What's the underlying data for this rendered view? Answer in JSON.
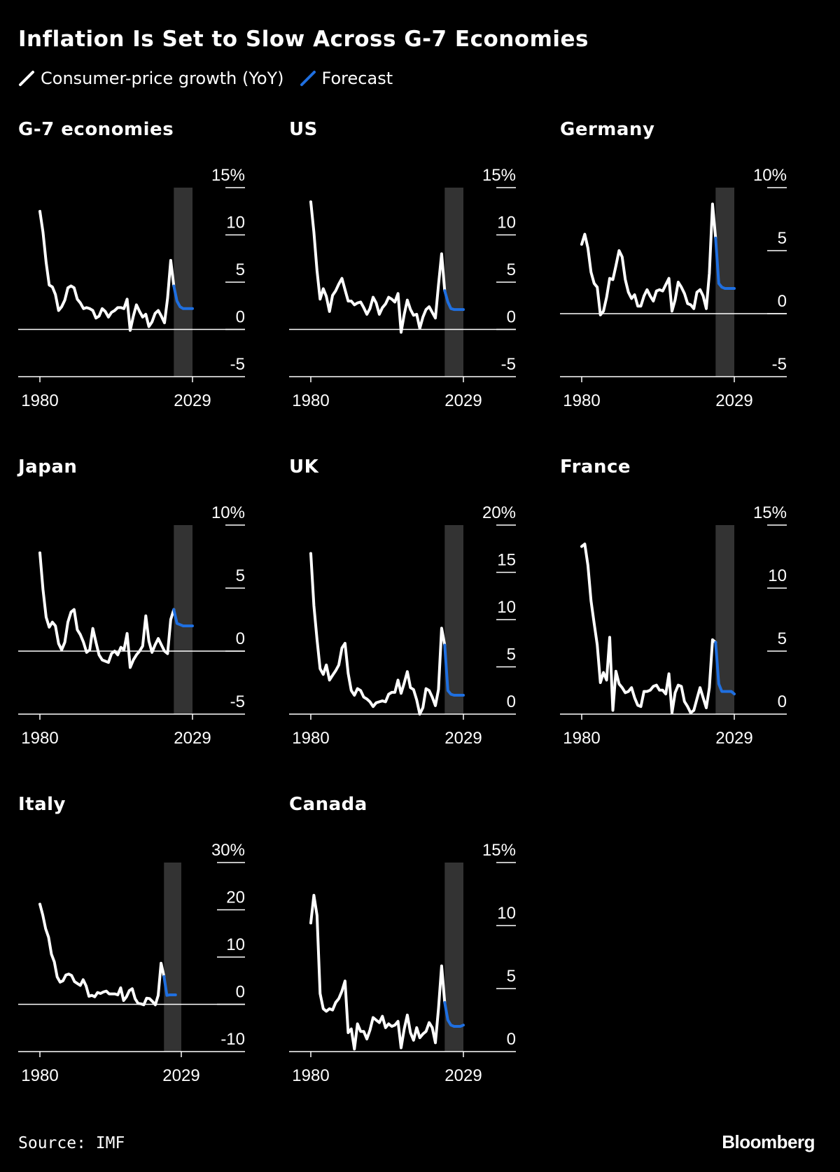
{
  "title": "Inflation Is Set to Slow Across G-7 Economies",
  "legend": {
    "items": [
      {
        "label": "Consumer-price growth (YoY)",
        "color": "#ffffff"
      },
      {
        "label": "Forecast",
        "color": "#1f6fe0"
      }
    ]
  },
  "source": "Source: IMF",
  "brand": "Bloomberg",
  "colors": {
    "background": "#000000",
    "history": "#ffffff",
    "forecast": "#1f6fe0",
    "forecast_band": "#333333"
  },
  "chart_data": [
    {
      "type": "line",
      "title": "G-7 economies",
      "x_ticks": [
        "1980",
        "2029"
      ],
      "forecast_range": [
        2023,
        2029
      ],
      "ylim": [
        -5,
        15
      ],
      "y_ticks": [
        15,
        10,
        5,
        0,
        -5
      ],
      "y_tick_labels": [
        "15%",
        "10",
        "5",
        "0",
        "-5"
      ],
      "series": [
        {
          "role": "history",
          "x": [
            1980,
            1981,
            1982,
            1983,
            1984,
            1985,
            1986,
            1987,
            1988,
            1989,
            1990,
            1991,
            1992,
            1993,
            1994,
            1995,
            1996,
            1997,
            1998,
            1999,
            2000,
            2001,
            2002,
            2003,
            2004,
            2005,
            2006,
            2007,
            2008,
            2009,
            2010,
            2011,
            2012,
            2013,
            2014,
            2015,
            2016,
            2017,
            2018,
            2019,
            2020,
            2021,
            2022,
            2023
          ],
          "y": [
            12.5,
            10.3,
            7.1,
            4.7,
            4.5,
            3.7,
            2.0,
            2.4,
            3.1,
            4.4,
            4.6,
            4.4,
            3.2,
            2.8,
            2.2,
            2.3,
            2.2,
            2.0,
            1.2,
            1.4,
            2.2,
            1.9,
            1.3,
            1.8,
            2.0,
            2.3,
            2.3,
            2.2,
            3.2,
            -0.1,
            1.4,
            2.6,
            1.9,
            1.3,
            1.6,
            0.3,
            0.8,
            1.7,
            2.0,
            1.4,
            0.7,
            3.3,
            7.3,
            4.6
          ]
        },
        {
          "role": "forecast",
          "x": [
            2023,
            2024,
            2025,
            2026,
            2027,
            2028,
            2029
          ],
          "y": [
            4.6,
            3.0,
            2.4,
            2.2,
            2.2,
            2.2,
            2.2
          ]
        }
      ]
    },
    {
      "type": "line",
      "title": "US",
      "x_ticks": [
        "1980",
        "2029"
      ],
      "forecast_range": [
        2023,
        2029
      ],
      "ylim": [
        -5,
        15
      ],
      "y_ticks": [
        15,
        10,
        5,
        0,
        -5
      ],
      "y_tick_labels": [
        "15%",
        "10",
        "5",
        "0",
        "-5"
      ],
      "series": [
        {
          "role": "history",
          "x": [
            1980,
            1981,
            1982,
            1983,
            1984,
            1985,
            1986,
            1987,
            1988,
            1989,
            1990,
            1991,
            1992,
            1993,
            1994,
            1995,
            1996,
            1997,
            1998,
            1999,
            2000,
            2001,
            2002,
            2003,
            2004,
            2005,
            2006,
            2007,
            2008,
            2009,
            2010,
            2011,
            2012,
            2013,
            2014,
            2015,
            2016,
            2017,
            2018,
            2019,
            2020,
            2021,
            2022,
            2023
          ],
          "y": [
            13.5,
            10.3,
            6.2,
            3.2,
            4.3,
            3.5,
            1.9,
            3.6,
            4.1,
            4.8,
            5.4,
            4.2,
            3.0,
            3.0,
            2.6,
            2.8,
            2.9,
            2.3,
            1.6,
            2.2,
            3.4,
            2.8,
            1.6,
            2.3,
            2.7,
            3.4,
            3.2,
            2.9,
            3.8,
            -0.3,
            1.6,
            3.1,
            2.1,
            1.5,
            1.6,
            0.1,
            1.3,
            2.1,
            2.4,
            1.8,
            1.2,
            4.7,
            8.0,
            4.1
          ]
        },
        {
          "role": "forecast",
          "x": [
            2023,
            2024,
            2025,
            2026,
            2027,
            2028,
            2029
          ],
          "y": [
            4.1,
            2.9,
            2.2,
            2.1,
            2.1,
            2.1,
            2.1
          ]
        }
      ]
    },
    {
      "type": "line",
      "title": "Germany",
      "x_ticks": [
        "1980",
        "2029"
      ],
      "forecast_range": [
        2023,
        2029
      ],
      "ylim": [
        -5,
        10
      ],
      "y_ticks": [
        10,
        5,
        0,
        -5
      ],
      "y_tick_labels": [
        "10%",
        "5",
        "0",
        "-5"
      ],
      "series": [
        {
          "role": "history",
          "x": [
            1980,
            1981,
            1982,
            1983,
            1984,
            1985,
            1986,
            1987,
            1988,
            1989,
            1990,
            1991,
            1992,
            1993,
            1994,
            1995,
            1996,
            1997,
            1998,
            1999,
            2000,
            2001,
            2002,
            2003,
            2004,
            2005,
            2006,
            2007,
            2008,
            2009,
            2010,
            2011,
            2012,
            2013,
            2014,
            2015,
            2016,
            2017,
            2018,
            2019,
            2020,
            2021,
            2022,
            2023
          ],
          "y": [
            5.5,
            6.3,
            5.2,
            3.3,
            2.4,
            2.1,
            -0.1,
            0.2,
            1.3,
            2.8,
            2.7,
            3.8,
            5.0,
            4.5,
            2.7,
            1.7,
            1.2,
            1.5,
            0.6,
            0.6,
            1.4,
            1.9,
            1.4,
            1.0,
            1.8,
            1.9,
            1.8,
            2.3,
            2.8,
            0.2,
            1.1,
            2.5,
            2.1,
            1.6,
            0.8,
            0.7,
            0.4,
            1.7,
            1.9,
            1.4,
            0.4,
            3.2,
            8.7,
            6.0
          ]
        },
        {
          "role": "forecast",
          "x": [
            2023,
            2024,
            2025,
            2026,
            2027,
            2028,
            2029
          ],
          "y": [
            6.0,
            2.4,
            2.1,
            2.0,
            2.0,
            2.0,
            2.0
          ]
        }
      ]
    },
    {
      "type": "line",
      "title": "Japan",
      "x_ticks": [
        "1980",
        "2029"
      ],
      "forecast_range": [
        2023,
        2029
      ],
      "ylim": [
        -5,
        10
      ],
      "y_ticks": [
        10,
        5,
        0,
        -5
      ],
      "y_tick_labels": [
        "10%",
        "5",
        "0",
        "-5"
      ],
      "series": [
        {
          "role": "history",
          "x": [
            1980,
            1981,
            1982,
            1983,
            1984,
            1985,
            1986,
            1987,
            1988,
            1989,
            1990,
            1991,
            1992,
            1993,
            1994,
            1995,
            1996,
            1997,
            1998,
            1999,
            2000,
            2001,
            2002,
            2003,
            2004,
            2005,
            2006,
            2007,
            2008,
            2009,
            2010,
            2011,
            2012,
            2013,
            2014,
            2015,
            2016,
            2017,
            2018,
            2019,
            2020,
            2021,
            2022,
            2023
          ],
          "y": [
            7.8,
            4.9,
            2.7,
            1.9,
            2.3,
            2.0,
            0.6,
            0.1,
            0.7,
            2.3,
            3.1,
            3.3,
            1.7,
            1.3,
            0.7,
            -0.1,
            0.1,
            1.8,
            0.7,
            -0.3,
            -0.7,
            -0.8,
            -0.9,
            -0.2,
            0.0,
            -0.3,
            0.3,
            0.1,
            1.4,
            -1.3,
            -0.7,
            -0.3,
            0.0,
            0.4,
            2.8,
            0.8,
            -0.1,
            0.5,
            1.0,
            0.5,
            0.0,
            -0.2,
            2.5,
            3.3
          ]
        },
        {
          "role": "forecast",
          "x": [
            2023,
            2024,
            2025,
            2026,
            2027,
            2028,
            2029
          ],
          "y": [
            3.3,
            2.2,
            2.1,
            2.0,
            2.0,
            2.0,
            2.0
          ]
        }
      ]
    },
    {
      "type": "line",
      "title": "UK",
      "x_ticks": [
        "1980",
        "2029"
      ],
      "forecast_range": [
        2023,
        2029
      ],
      "ylim": [
        0,
        20
      ],
      "y_ticks": [
        20,
        15,
        10,
        5,
        0
      ],
      "y_tick_labels": [
        "20%",
        "15",
        "10",
        "5",
        "0"
      ],
      "series": [
        {
          "role": "history",
          "x": [
            1980,
            1981,
            1982,
            1983,
            1984,
            1985,
            1986,
            1987,
            1988,
            1989,
            1990,
            1991,
            1992,
            1993,
            1994,
            1995,
            1996,
            1997,
            1998,
            1999,
            2000,
            2001,
            2002,
            2003,
            2004,
            2005,
            2006,
            2007,
            2008,
            2009,
            2010,
            2011,
            2012,
            2013,
            2014,
            2015,
            2016,
            2017,
            2018,
            2019,
            2020,
            2021,
            2022,
            2023
          ],
          "y": [
            17.0,
            11.5,
            7.9,
            4.8,
            4.2,
            5.2,
            3.6,
            4.1,
            4.6,
            5.2,
            7.0,
            7.5,
            4.3,
            2.5,
            2.0,
            2.7,
            2.5,
            1.8,
            1.6,
            1.3,
            0.8,
            1.2,
            1.3,
            1.4,
            1.3,
            2.1,
            2.3,
            2.3,
            3.6,
            2.2,
            3.3,
            4.5,
            2.8,
            2.6,
            1.5,
            0.0,
            0.7,
            2.7,
            2.5,
            1.8,
            0.9,
            2.6,
            9.1,
            7.3
          ]
        },
        {
          "role": "forecast",
          "x": [
            2023,
            2024,
            2025,
            2026,
            2027,
            2028,
            2029
          ],
          "y": [
            7.3,
            2.5,
            2.1,
            2.0,
            2.0,
            2.0,
            2.0
          ]
        }
      ]
    },
    {
      "type": "line",
      "title": "France",
      "x_ticks": [
        "1980",
        "2029"
      ],
      "forecast_range": [
        2023,
        2029
      ],
      "ylim": [
        0,
        15
      ],
      "y_ticks": [
        15,
        10,
        5,
        0
      ],
      "y_tick_labels": [
        "15%",
        "10",
        "5",
        "0"
      ],
      "series": [
        {
          "role": "history",
          "x": [
            1980,
            1981,
            1982,
            1983,
            1984,
            1985,
            1986,
            1987,
            1988,
            1989,
            1990,
            1991,
            1992,
            1993,
            1994,
            1995,
            1996,
            1997,
            1998,
            1999,
            2000,
            2001,
            2002,
            2003,
            2004,
            2005,
            2006,
            2007,
            2008,
            2009,
            2010,
            2011,
            2012,
            2013,
            2014,
            2015,
            2016,
            2017,
            2018,
            2019,
            2020,
            2021,
            2022,
            2023
          ],
          "y": [
            13.3,
            13.5,
            11.8,
            9.0,
            7.2,
            5.5,
            2.5,
            3.3,
            2.7,
            6.1,
            0.3,
            3.4,
            2.4,
            2.1,
            1.7,
            1.8,
            2.1,
            1.3,
            0.7,
            0.6,
            1.8,
            1.8,
            1.9,
            2.2,
            2.3,
            1.9,
            1.9,
            1.6,
            3.2,
            0.1,
            1.7,
            2.3,
            2.2,
            1.0,
            0.6,
            0.1,
            0.3,
            1.2,
            2.1,
            1.3,
            0.5,
            2.1,
            5.9,
            5.7
          ]
        },
        {
          "role": "forecast",
          "x": [
            2023,
            2024,
            2025,
            2026,
            2027,
            2028,
            2029
          ],
          "y": [
            5.7,
            2.4,
            1.8,
            1.8,
            1.8,
            1.8,
            1.6
          ]
        }
      ]
    },
    {
      "type": "line",
      "title": "Italy",
      "x_ticks": [
        "1980",
        "2029"
      ],
      "forecast_range": [
        2023,
        2029
      ],
      "ylim": [
        -10,
        30
      ],
      "y_ticks": [
        30,
        20,
        10,
        0,
        -10
      ],
      "y_tick_labels": [
        "30%",
        "20",
        "10",
        "0",
        "-10"
      ],
      "series": [
        {
          "role": "history",
          "x": [
            1980,
            1981,
            1982,
            1983,
            1984,
            1985,
            1986,
            1987,
            1988,
            1989,
            1990,
            1991,
            1992,
            1993,
            1994,
            1995,
            1996,
            1997,
            1998,
            1999,
            2000,
            2001,
            2002,
            2003,
            2004,
            2005,
            2006,
            2007,
            2008,
            2009,
            2010,
            2011,
            2012,
            2013,
            2014,
            2015,
            2016,
            2017,
            2018,
            2019,
            2020,
            2021,
            2022,
            2023
          ],
          "y": [
            21.2,
            18.9,
            16.0,
            14.2,
            10.6,
            9.0,
            5.8,
            4.7,
            5.0,
            6.2,
            6.4,
            6.1,
            4.8,
            4.4,
            4.0,
            5.2,
            3.9,
            1.7,
            1.9,
            1.6,
            2.5,
            2.3,
            2.6,
            2.8,
            2.2,
            2.2,
            2.2,
            2.0,
            3.5,
            0.8,
            1.6,
            2.9,
            3.3,
            1.2,
            0.2,
            0.1,
            -0.1,
            1.3,
            1.2,
            0.6,
            -0.1,
            1.9,
            8.7,
            5.9
          ]
        },
        {
          "role": "forecast",
          "x": [
            2023,
            2024,
            2025,
            2026,
            2027
          ],
          "y": [
            5.9,
            1.9,
            2.0,
            2.0,
            2.0
          ]
        }
      ]
    },
    {
      "type": "line",
      "title": "Canada",
      "x_ticks": [
        "1980",
        "2029"
      ],
      "forecast_range": [
        2023,
        2029
      ],
      "ylim": [
        0,
        15
      ],
      "y_ticks": [
        15,
        10,
        5,
        0
      ],
      "y_tick_labels": [
        "15%",
        "10",
        "5",
        "0"
      ],
      "series": [
        {
          "role": "history",
          "x": [
            1980,
            1981,
            1982,
            1983,
            1984,
            1985,
            1986,
            1987,
            1988,
            1989,
            1990,
            1991,
            1992,
            1993,
            1994,
            1995,
            1996,
            1997,
            1998,
            1999,
            2000,
            2001,
            2002,
            2003,
            2004,
            2005,
            2006,
            2007,
            2008,
            2009,
            2010,
            2011,
            2012,
            2013,
            2014,
            2015,
            2016,
            2017,
            2018,
            2019,
            2020,
            2021,
            2022,
            2023
          ],
          "y": [
            10.2,
            12.4,
            10.8,
            4.6,
            3.4,
            3.2,
            3.4,
            3.3,
            3.9,
            4.2,
            4.8,
            5.6,
            1.5,
            1.8,
            0.2,
            2.2,
            1.6,
            1.6,
            1.0,
            1.7,
            2.7,
            2.5,
            2.3,
            2.8,
            1.9,
            2.2,
            2.0,
            2.1,
            2.4,
            0.3,
            1.8,
            2.9,
            1.5,
            0.9,
            1.9,
            1.1,
            1.4,
            1.6,
            2.3,
            1.9,
            0.7,
            3.4,
            6.8,
            3.9
          ]
        },
        {
          "role": "forecast",
          "x": [
            2023,
            2024,
            2025,
            2026,
            2027,
            2028,
            2029
          ],
          "y": [
            3.9,
            2.5,
            2.1,
            2.0,
            2.0,
            2.0,
            2.1
          ]
        }
      ]
    }
  ]
}
